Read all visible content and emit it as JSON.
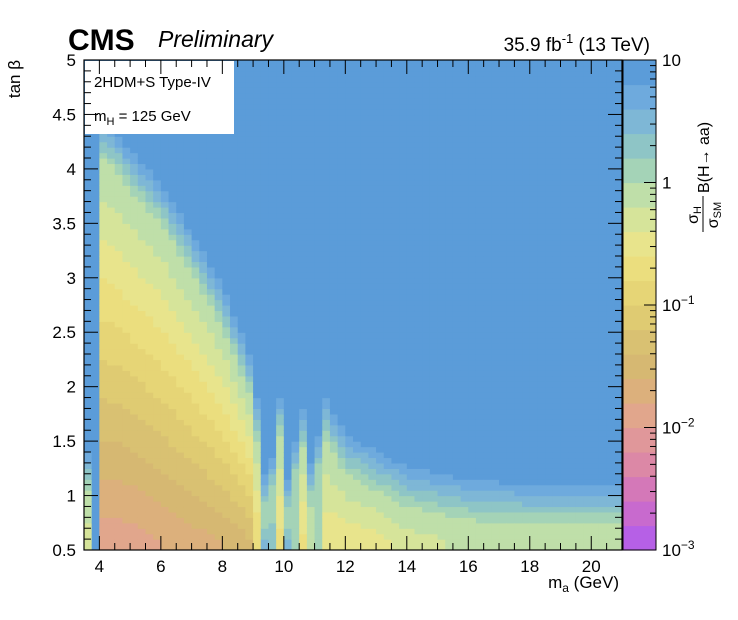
{
  "header": {
    "experiment": "CMS",
    "status": "Preliminary",
    "lumi_value": "35.9 fb",
    "lumi_exp": "-1",
    "energy": " (13 TeV)"
  },
  "legend": {
    "model": "2HDM+S Type-IV",
    "mass_sym": "m",
    "mass_sub": "H",
    "mass_val": " = 125 GeV"
  },
  "axes": {
    "x_title_sym": "m",
    "x_title_sub": "a",
    "x_title_unit": " (GeV)",
    "y_title": "tan β",
    "z_title_sigma": "σ",
    "z_title_num_sub": "H",
    "z_title_den_sub": "SM",
    "z_title_rest": "B(H→ aa)"
  },
  "chart_data": {
    "type": "heatmap",
    "title": "",
    "xlabel": "ma (GeV)",
    "ylabel": "tan β",
    "zlabel": "σH/σSM B(H→ aa)",
    "xlim": [
      3.5,
      21
    ],
    "ylim": [
      0.5,
      5
    ],
    "zlim": [
      0.001,
      10
    ],
    "zscale": "log",
    "x_ticks": [
      4,
      6,
      8,
      10,
      12,
      14,
      16,
      18,
      20
    ],
    "x_tick_labels": [
      "4",
      "6",
      "8",
      "10",
      "12",
      "14",
      "16",
      "18",
      "20"
    ],
    "y_ticks": [
      0.5,
      1,
      1.5,
      2,
      2.5,
      3,
      3.5,
      4,
      4.5,
      5
    ],
    "y_tick_labels": [
      "0.5",
      "1",
      "1.5",
      "2",
      "2.5",
      "3",
      "3.5",
      "4",
      "4.5",
      "5"
    ],
    "z_ticks": [
      {
        "base": "10",
        "exp": "",
        "value": 10
      },
      {
        "base": "1",
        "exp": "",
        "value": 1
      },
      {
        "base": "10",
        "exp": "−1",
        "value": 0.1
      },
      {
        "base": "10",
        "exp": "−2",
        "value": 0.01
      },
      {
        "base": "10",
        "exp": "−3",
        "value": 0.001
      }
    ],
    "palette": [
      "#b660e6",
      "#c86ace",
      "#d478b8",
      "#dc88a6",
      "#e0979a",
      "#e1a68c",
      "#dcb07c",
      "#d6b872",
      "#d9c172",
      "#dfcb72",
      "#e6d576",
      "#ebde7e",
      "#e8e48c",
      "#d6e49a",
      "#bfdfa9",
      "#a4d3b7",
      "#8ec5c6",
      "#7eb7d6",
      "#6eaadd",
      "#5b9cd9"
    ],
    "background_color": "#5b9cd9",
    "x_bin_width": 0.25,
    "y_bin_width": 0.05,
    "values_note": "",
    "region_descriptions": [],
    "log10_z_by_x": {
      "x": [
        3.6,
        3.9,
        4.0,
        4.5,
        5.0,
        6.0,
        7.0,
        8.0,
        9.0,
        9.5,
        9.8,
        10.0,
        10.2,
        10.5,
        10.8,
        11.0,
        11.2,
        11.5,
        12.0,
        13.0,
        14.0,
        16.0,
        18.0,
        20.0,
        20.9
      ],
      "log10_z_at_tanb_0p6": [
        -0.4,
        1.0,
        -1.9,
        -1.9,
        -1.9,
        -1.8,
        -1.7,
        -1.6,
        -1.4,
        1.0,
        -0.7,
        -0.6,
        1.0,
        -0.7,
        -0.6,
        1.0,
        -0.5,
        -0.6,
        -0.55,
        -0.5,
        -0.3,
        -0.15,
        -0.1,
        -0.1,
        -0.1
      ],
      "tanb_limit_z_1": [
        1.1,
        0.5,
        4.1,
        4.0,
        3.8,
        3.5,
        3.05,
        2.55,
        1.85,
        0.5,
        1.7,
        1.3,
        0.5,
        1.6,
        1.2,
        0.5,
        1.6,
        1.45,
        1.2,
        1.05,
        0.9,
        0.78,
        0.74,
        0.74,
        0.74
      ]
    }
  }
}
